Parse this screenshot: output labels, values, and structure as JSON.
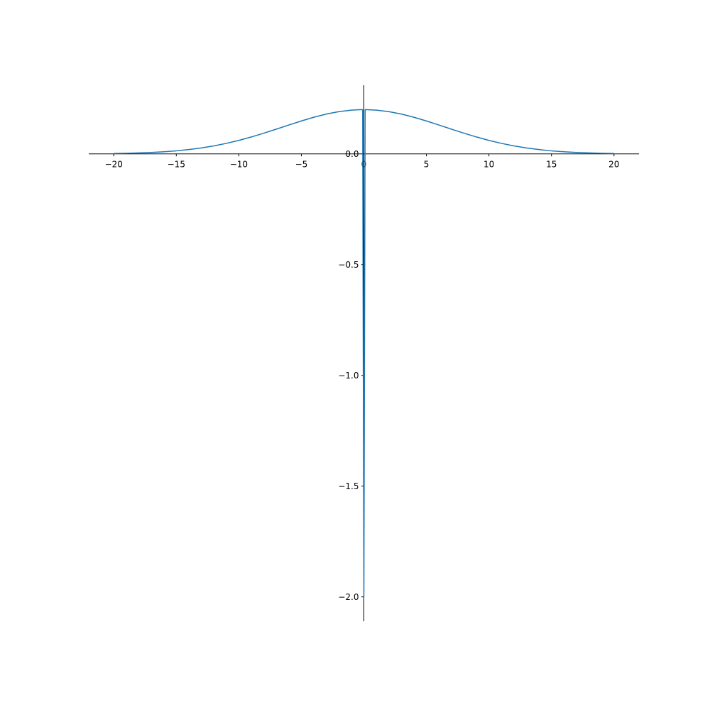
{
  "chart_data": {
    "type": "line",
    "x": [
      -20,
      -19,
      -18,
      -17,
      -16,
      -15,
      -14,
      -13,
      -12,
      -11,
      -10,
      -9,
      -8,
      -7,
      -6,
      -5,
      -4,
      -3,
      -2,
      -1,
      -0.1,
      0,
      0.1,
      1,
      2,
      3,
      4,
      5,
      6,
      7,
      8,
      9,
      10,
      11,
      12,
      13,
      14,
      15,
      16,
      17,
      18,
      19,
      20
    ],
    "values": [
      0.0017,
      0.0027,
      0.0042,
      0.0064,
      0.0095,
      0.0137,
      0.0194,
      0.0267,
      0.036,
      0.0474,
      0.0608,
      0.0763,
      0.0934,
      0.1116,
      0.1303,
      0.1485,
      0.1653,
      0.1797,
      0.1907,
      0.1976,
      0.2,
      -2.0,
      0.2,
      0.1976,
      0.1907,
      0.1797,
      0.1653,
      0.1485,
      0.1303,
      0.1116,
      0.0934,
      0.0763,
      0.0608,
      0.0474,
      0.036,
      0.0267,
      0.0194,
      0.0137,
      0.0095,
      0.0064,
      0.0042,
      0.0027,
      0.0017
    ],
    "color": "#1f77b4",
    "xlim": [
      -22,
      22
    ],
    "ylim": [
      -2.11,
      0.31
    ],
    "xticks": [
      {
        "value": -20,
        "label": "−20"
      },
      {
        "value": -15,
        "label": "−15"
      },
      {
        "value": -10,
        "label": "−10"
      },
      {
        "value": -5,
        "label": "−5"
      },
      0,
      5,
      10,
      15,
      20
    ],
    "yticks": [
      {
        "value": 0,
        "label": "0.0"
      },
      {
        "value": -0.5,
        "label": "−0.5"
      },
      {
        "value": -1,
        "label": "−1.0"
      },
      {
        "value": -1.5,
        "label": "−1.5"
      },
      {
        "value": -2,
        "label": "−2.0"
      }
    ]
  }
}
